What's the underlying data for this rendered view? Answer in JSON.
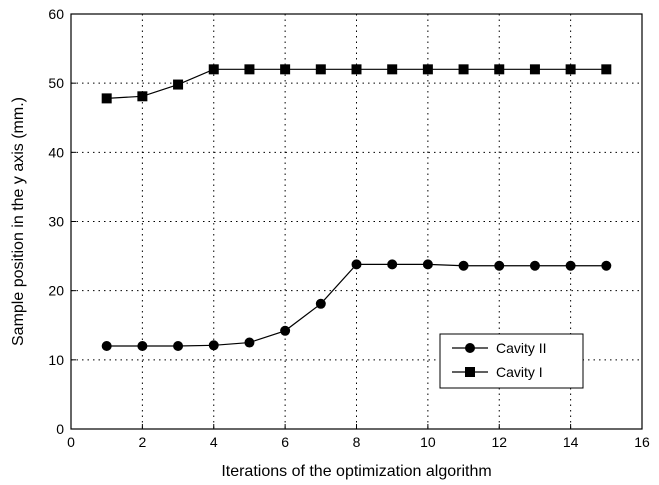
{
  "chart_data": {
    "type": "line",
    "title": "",
    "xlabel": "Iterations of the optimization algorithm",
    "ylabel": "Sample position in the y axis (mm.)",
    "xlim": [
      0,
      16
    ],
    "ylim": [
      0,
      60
    ],
    "xticks": [
      0,
      2,
      4,
      6,
      8,
      10,
      12,
      14,
      16
    ],
    "yticks": [
      0,
      10,
      20,
      30,
      40,
      50,
      60
    ],
    "grid": "dotted",
    "legend_position": "lower-right",
    "x": [
      1,
      2,
      3,
      4,
      5,
      6,
      7,
      8,
      9,
      10,
      11,
      12,
      13,
      14,
      15
    ],
    "series": [
      {
        "name": "Cavity II",
        "marker": "circle",
        "color": "#000000",
        "values": [
          12.0,
          12.0,
          12.0,
          12.1,
          12.5,
          14.2,
          18.1,
          23.8,
          23.8,
          23.8,
          23.6,
          23.6,
          23.6,
          23.6,
          23.6
        ]
      },
      {
        "name": "Cavity I",
        "marker": "square",
        "color": "#000000",
        "values": [
          47.8,
          48.1,
          49.8,
          52.0,
          52.0,
          52.0,
          52.0,
          52.0,
          52.0,
          52.0,
          52.0,
          52.0,
          52.0,
          52.0,
          52.0
        ]
      }
    ]
  }
}
